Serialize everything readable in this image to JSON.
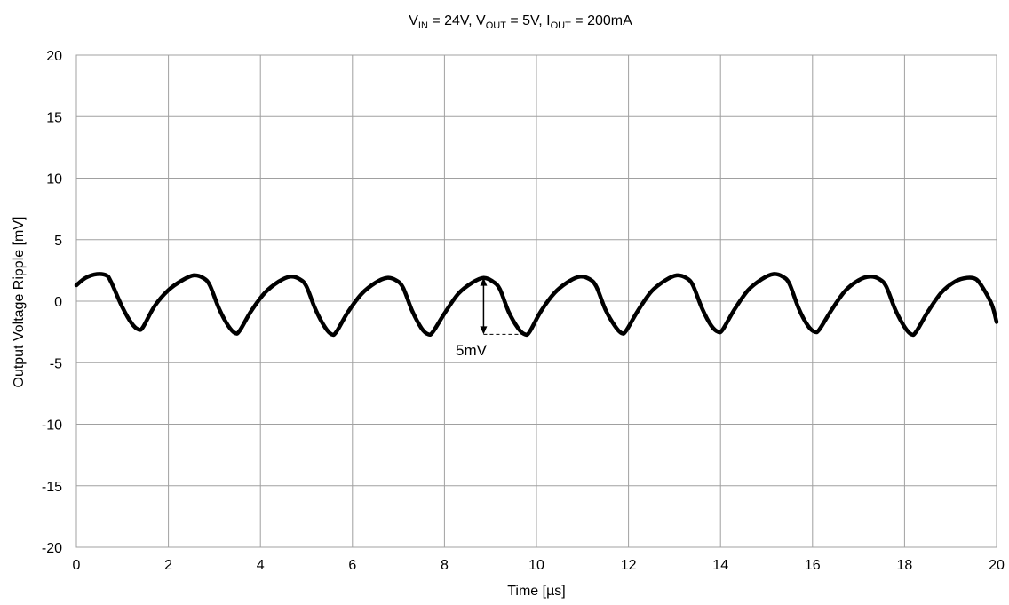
{
  "chart_data": {
    "type": "line",
    "title": {
      "vin_main": "V",
      "vin_sub": "IN",
      "vin_val": " = 24V, ",
      "vout_main": "V",
      "vout_sub": "OUT",
      "vout_val": " = 5V, ",
      "iout_main": "I",
      "iout_sub": "OUT",
      "iout_val": " = 200mA"
    },
    "xlabel": "Time  [µs]",
    "ylabel": "Output Voltage Ripple  [mV]",
    "xlim": [
      0,
      20
    ],
    "ylim": [
      -20,
      20
    ],
    "xticks": [
      0,
      2,
      4,
      6,
      8,
      10,
      12,
      14,
      16,
      18,
      20
    ],
    "yticks": [
      20,
      15,
      10,
      5,
      0,
      -5,
      -10,
      -15,
      -20
    ],
    "grid": true,
    "series": [
      {
        "color": "#000000",
        "x": [
          0,
          0.2,
          0.45,
          0.65,
          0.75,
          1.0,
          1.2,
          1.35,
          1.45,
          1.7,
          2.0,
          2.3,
          2.55,
          2.75,
          2.9,
          3.1,
          3.3,
          3.45,
          3.55,
          3.8,
          4.1,
          4.4,
          4.65,
          4.85,
          5.0,
          5.2,
          5.4,
          5.55,
          5.65,
          5.9,
          6.2,
          6.5,
          6.75,
          6.95,
          7.1,
          7.3,
          7.5,
          7.65,
          7.75,
          8.0,
          8.3,
          8.6,
          8.85,
          9.05,
          9.2,
          9.4,
          9.6,
          9.75,
          9.85,
          10.1,
          10.4,
          10.7,
          10.95,
          11.15,
          11.3,
          11.5,
          11.7,
          11.85,
          11.95,
          12.2,
          12.5,
          12.8,
          13.05,
          13.25,
          13.4,
          13.6,
          13.8,
          13.95,
          14.05,
          14.3,
          14.6,
          14.9,
          15.15,
          15.35,
          15.5,
          15.7,
          15.9,
          16.05,
          16.15,
          16.4,
          16.7,
          17.0,
          17.25,
          17.45,
          17.6,
          17.8,
          18.0,
          18.15,
          18.25,
          18.5,
          18.8,
          19.1,
          19.35,
          19.55,
          19.7,
          19.9,
          20.0
        ],
        "y": [
          1.3,
          1.9,
          2.2,
          2.1,
          1.6,
          -0.5,
          -1.8,
          -2.3,
          -2.1,
          -0.4,
          0.9,
          1.7,
          2.1,
          1.9,
          1.3,
          -0.6,
          -2.0,
          -2.6,
          -2.4,
          -0.8,
          0.7,
          1.6,
          2.0,
          1.8,
          1.2,
          -0.7,
          -2.1,
          -2.7,
          -2.5,
          -0.9,
          0.6,
          1.5,
          1.9,
          1.7,
          1.1,
          -0.8,
          -2.2,
          -2.7,
          -2.5,
          -1.0,
          0.6,
          1.5,
          1.9,
          1.6,
          1.0,
          -0.9,
          -2.2,
          -2.7,
          -2.5,
          -0.8,
          0.7,
          1.6,
          2.0,
          1.8,
          1.2,
          -0.7,
          -2.0,
          -2.6,
          -2.4,
          -0.8,
          0.8,
          1.7,
          2.1,
          1.9,
          1.3,
          -0.6,
          -2.0,
          -2.5,
          -2.3,
          -0.7,
          0.9,
          1.8,
          2.2,
          2.0,
          1.4,
          -0.6,
          -2.0,
          -2.5,
          -2.3,
          -0.8,
          0.8,
          1.7,
          2.0,
          1.8,
          1.2,
          -0.7,
          -2.1,
          -2.7,
          -2.5,
          -0.9,
          0.7,
          1.6,
          1.9,
          1.8,
          1.1,
          -0.3,
          -1.7
        ]
      }
    ],
    "annotation": {
      "text": "5mV",
      "x": 8.85,
      "y_top": 1.9,
      "y_bottom": -2.7,
      "dash_to_x": 9.7
    }
  }
}
